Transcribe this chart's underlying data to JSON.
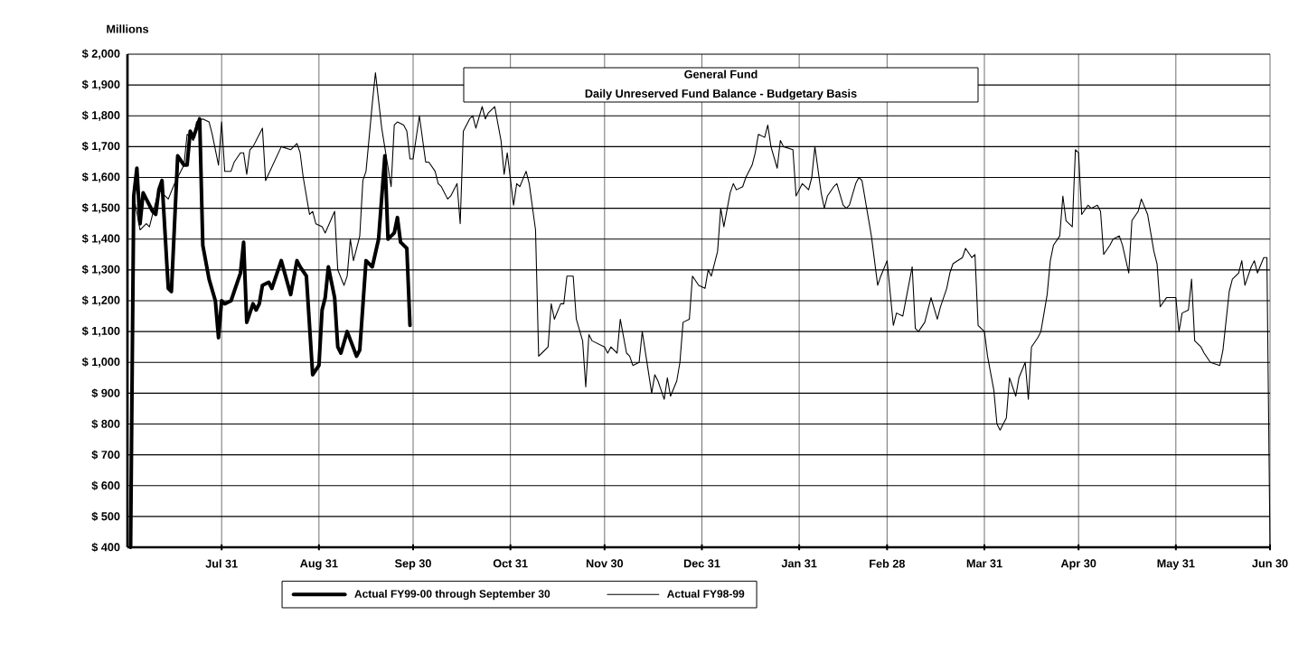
{
  "chart_data": {
    "type": "line",
    "title": "General Fund",
    "subtitle": "Daily Unreserved Fund Balance - Budgetary Basis",
    "ylabel": "Millions",
    "xlim": [
      "1998-07-01",
      "1999-06-30"
    ],
    "xticks": [
      {
        "value": "1998-07-31",
        "label": "Jul 31"
      },
      {
        "value": "1998-08-31",
        "label": "Aug 31"
      },
      {
        "value": "1998-09-30",
        "label": "Sep 30"
      },
      {
        "value": "1998-10-31",
        "label": "Oct 31"
      },
      {
        "value": "1998-11-30",
        "label": "Nov 30"
      },
      {
        "value": "1998-12-31",
        "label": "Dec 31"
      },
      {
        "value": "1999-01-31",
        "label": "Jan 31"
      },
      {
        "value": "1999-02-28",
        "label": "Feb 28"
      },
      {
        "value": "1999-03-31",
        "label": "Mar 31"
      },
      {
        "value": "1999-04-30",
        "label": "Apr 30"
      },
      {
        "value": "1999-05-31",
        "label": "May 31"
      },
      {
        "value": "1999-06-30",
        "label": "Jun 30"
      }
    ],
    "ylim": [
      400,
      2000
    ],
    "yticks": [
      {
        "value": 400,
        "label": "$ 400"
      },
      {
        "value": 500,
        "label": "$ 500"
      },
      {
        "value": 600,
        "label": "$ 600"
      },
      {
        "value": 700,
        "label": "$ 700"
      },
      {
        "value": 800,
        "label": "$ 800"
      },
      {
        "value": 900,
        "label": "$ 900"
      },
      {
        "value": 1000,
        "label": "$ 1,000"
      },
      {
        "value": 1100,
        "label": "$ 1,100"
      },
      {
        "value": 1200,
        "label": "$ 1,200"
      },
      {
        "value": 1300,
        "label": "$ 1,300"
      },
      {
        "value": 1400,
        "label": "$ 1,400"
      },
      {
        "value": 1500,
        "label": "$ 1,500"
      },
      {
        "value": 1600,
        "label": "$ 1,600"
      },
      {
        "value": 1700,
        "label": "$ 1,700"
      },
      {
        "value": 1800,
        "label": "$ 1,800"
      },
      {
        "value": 1900,
        "label": "$ 1,900"
      },
      {
        "value": 2000,
        "label": "$ 2,000"
      }
    ],
    "grid": true,
    "legend": "bottom",
    "series": [
      {
        "name": "Actual FY99-00 through September 30",
        "color": "#000000",
        "x": [
          "1998-07-02",
          "1998-07-03",
          "1998-07-04",
          "1998-07-05",
          "1998-07-06",
          "1998-07-09",
          "1998-07-10",
          "1998-07-11",
          "1998-07-12",
          "1998-07-14",
          "1998-07-15",
          "1998-07-17",
          "1998-07-19",
          "1998-07-20",
          "1998-07-21",
          "1998-07-22",
          "1998-07-24",
          "1998-07-25",
          "1998-07-27",
          "1998-07-29",
          "1998-07-30",
          "1998-07-31",
          "1998-08-01",
          "1998-08-03",
          "1998-08-04",
          "1998-08-06",
          "1998-08-07",
          "1998-08-08",
          "1998-08-10",
          "1998-08-11",
          "1998-08-12",
          "1998-08-13",
          "1998-08-15",
          "1998-08-16",
          "1998-08-19",
          "1998-08-22",
          "1998-08-24",
          "1998-08-25",
          "1998-08-27",
          "1998-08-28",
          "1998-08-29",
          "1998-08-31",
          "1998-09-01",
          "1998-09-02",
          "1998-09-03",
          "1998-09-05",
          "1998-09-06",
          "1998-09-07",
          "1998-09-09",
          "1998-09-12",
          "1998-09-13",
          "1998-09-15",
          "1998-09-17",
          "1998-09-19",
          "1998-09-21",
          "1998-09-22",
          "1998-09-24",
          "1998-09-25",
          "1998-09-26",
          "1998-09-28",
          "1998-09-29"
        ],
        "values": [
          400,
          1540,
          1630,
          1450,
          1550,
          1490,
          1480,
          1560,
          1590,
          1240,
          1230,
          1670,
          1640,
          1640,
          1750,
          1730,
          1790,
          1380,
          1270,
          1200,
          1080,
          1200,
          1190,
          1200,
          1230,
          1290,
          1390,
          1130,
          1190,
          1170,
          1190,
          1250,
          1260,
          1240,
          1330,
          1220,
          1330,
          1310,
          1280,
          1120,
          960,
          990,
          1170,
          1210,
          1310,
          1210,
          1050,
          1030,
          1100,
          1020,
          1040,
          1330,
          1310,
          1400,
          1670,
          1400,
          1420,
          1470,
          1390,
          1370,
          1120
        ]
      },
      {
        "name": "Actual FY98-99",
        "color": "#000000",
        "x": [
          "1998-07-03",
          "1998-07-05",
          "1998-07-07",
          "1998-07-08",
          "1998-07-09",
          "1998-07-11",
          "1998-07-14",
          "1998-07-16",
          "1998-07-19",
          "1998-07-20",
          "1998-07-22",
          "1998-07-23",
          "1998-07-25",
          "1998-07-27",
          "1998-07-28",
          "1998-07-30",
          "1998-07-31",
          "1998-08-01",
          "1998-08-03",
          "1998-08-04",
          "1998-08-06",
          "1998-08-07",
          "1998-08-08",
          "1998-08-09",
          "1998-08-10",
          "1998-08-13",
          "1998-08-14",
          "1998-08-19",
          "1998-08-22",
          "1998-08-24",
          "1998-08-25",
          "1998-08-26",
          "1998-08-28",
          "1998-08-29",
          "1998-08-30",
          "1998-09-01",
          "1998-09-02",
          "1998-09-05",
          "1998-09-06",
          "1998-09-08",
          "1998-09-09",
          "1998-09-10",
          "1998-09-11",
          "1998-09-13",
          "1998-09-14",
          "1998-09-15",
          "1998-09-17",
          "1998-09-18",
          "1998-09-20",
          "1998-09-23",
          "1998-09-24",
          "1998-09-25",
          "1998-09-27",
          "1998-09-28",
          "1998-09-29",
          "1998-09-30",
          "1998-10-02",
          "1998-10-04",
          "1998-10-05",
          "1998-10-07",
          "1998-10-08",
          "1998-10-09",
          "1998-10-11",
          "1998-10-12",
          "1998-10-14",
          "1998-10-15",
          "1998-10-16",
          "1998-10-18",
          "1998-10-19",
          "1998-10-20",
          "1998-10-22",
          "1998-10-23",
          "1998-10-24",
          "1998-10-26",
          "1998-10-28",
          "1998-10-29",
          "1998-10-30",
          "1998-11-01",
          "1998-11-02",
          "1998-11-03",
          "1998-11-05",
          "1998-11-06",
          "1998-11-08",
          "1998-11-09",
          "1998-11-10",
          "1998-11-12",
          "1998-11-13",
          "1998-11-14",
          "1998-11-16",
          "1998-11-17",
          "1998-11-18",
          "1998-11-20",
          "1998-11-21",
          "1998-11-23",
          "1998-11-24",
          "1998-11-25",
          "1998-11-26",
          "1998-11-30",
          "1998-12-01",
          "1998-12-02",
          "1998-12-04",
          "1998-12-05",
          "1998-12-07",
          "1998-12-08",
          "1998-12-09",
          "1998-12-11",
          "1998-12-12",
          "1998-12-15",
          "1998-12-16",
          "1998-12-17",
          "1998-12-19",
          "1998-12-20",
          "1998-12-21",
          "1998-12-23",
          "1998-12-24",
          "1998-12-25",
          "1998-12-27",
          "1998-12-28",
          "1998-12-30",
          "1999-01-01",
          "1999-01-02",
          "1999-01-03",
          "1999-01-05",
          "1999-01-06",
          "1999-01-07",
          "1999-01-09",
          "1999-01-10",
          "1999-01-11",
          "1999-01-13",
          "1999-01-14",
          "1999-01-16",
          "1999-01-17",
          "1999-01-18",
          "1999-01-20",
          "1999-01-21",
          "1999-01-22",
          "1999-01-24",
          "1999-01-25",
          "1999-01-26",
          "1999-01-29",
          "1999-01-30",
          "1999-02-01",
          "1999-02-03",
          "1999-02-04",
          "1999-02-05",
          "1999-02-07",
          "1999-02-08",
          "1999-02-09",
          "1999-02-11",
          "1999-02-12",
          "1999-02-14",
          "1999-02-15",
          "1999-02-16",
          "1999-02-18",
          "1999-02-19",
          "1999-02-20",
          "1999-02-22",
          "1999-02-23",
          "1999-02-25",
          "1999-02-26",
          "1999-02-28",
          "1999-03-02",
          "1999-03-03",
          "1999-03-05",
          "1999-03-08",
          "1999-03-09",
          "1999-03-10",
          "1999-03-12",
          "1999-03-14",
          "1999-03-16",
          "1999-03-17",
          "1999-03-19",
          "1999-03-20",
          "1999-03-21",
          "1999-03-24",
          "1999-03-25",
          "1999-03-27",
          "1999-03-28",
          "1999-03-29",
          "1999-03-31",
          "1999-04-01",
          "1999-04-03",
          "1999-04-04",
          "1999-04-05",
          "1999-04-07",
          "1999-04-08",
          "1999-04-10",
          "1999-04-11",
          "1999-04-13",
          "1999-04-14",
          "1999-04-15",
          "1999-04-17",
          "1999-04-18",
          "1999-04-20",
          "1999-04-21",
          "1999-04-22",
          "1999-04-24",
          "1999-04-25",
          "1999-04-26",
          "1999-04-28",
          "1999-04-29",
          "1999-04-30",
          "1999-05-01",
          "1999-05-03",
          "1999-05-04",
          "1999-05-06",
          "1999-05-07",
          "1999-05-08",
          "1999-05-10",
          "1999-05-11",
          "1999-05-13",
          "1999-05-14",
          "1999-05-16",
          "1999-05-17",
          "1999-05-19",
          "1999-05-20",
          "1999-05-22",
          "1999-05-24",
          "1999-05-25",
          "1999-05-26",
          "1999-05-28",
          "1999-05-31",
          "1999-06-01",
          "1999-06-02",
          "1999-06-04",
          "1999-06-05",
          "1999-06-06",
          "1999-06-08",
          "1999-06-09",
          "1999-06-11",
          "1999-06-14",
          "1999-06-15",
          "1999-06-17",
          "1999-06-18",
          "1999-06-20",
          "1999-06-21",
          "1999-06-22",
          "1999-06-24",
          "1999-06-25",
          "1999-06-26",
          "1999-06-28",
          "1999-06-29",
          "1999-06-30"
        ],
        "values": [
          1540,
          1430,
          1450,
          1440,
          1480,
          1560,
          1530,
          1580,
          1640,
          1740,
          1720,
          1780,
          1790,
          1780,
          1740,
          1640,
          1780,
          1620,
          1620,
          1650,
          1680,
          1680,
          1610,
          1690,
          1700,
          1760,
          1590,
          1700,
          1690,
          1710,
          1680,
          1600,
          1480,
          1490,
          1450,
          1440,
          1420,
          1490,
          1300,
          1250,
          1280,
          1400,
          1330,
          1410,
          1590,
          1620,
          1840,
          1940,
          1760,
          1570,
          1770,
          1780,
          1770,
          1750,
          1660,
          1660,
          1800,
          1650,
          1650,
          1620,
          1580,
          1570,
          1530,
          1540,
          1580,
          1450,
          1750,
          1790,
          1800,
          1760,
          1830,
          1790,
          1810,
          1830,
          1720,
          1610,
          1680,
          1510,
          1580,
          1570,
          1620,
          1580,
          1430,
          1020,
          1030,
          1050,
          1190,
          1140,
          1190,
          1190,
          1280,
          1280,
          1140,
          1070,
          920,
          1090,
          1070,
          1050,
          1030,
          1050,
          1030,
          1140,
          1030,
          1020,
          990,
          1000,
          1100,
          900,
          960,
          940,
          880,
          950,
          890,
          940,
          1000,
          1130,
          1140,
          1280,
          1250,
          1240,
          1300,
          1280,
          1360,
          1500,
          1440,
          1550,
          1580,
          1560,
          1570,
          1600,
          1640,
          1680,
          1740,
          1730,
          1770,
          1700,
          1630,
          1720,
          1700,
          1690,
          1540,
          1580,
          1560,
          1600,
          1700,
          1550,
          1500,
          1540,
          1570,
          1580,
          1510,
          1500,
          1510,
          1580,
          1600,
          1590,
          1470,
          1410,
          1250,
          1280,
          1330,
          1120,
          1160,
          1150,
          1310,
          1110,
          1100,
          1130,
          1210,
          1140,
          1180,
          1240,
          1290,
          1320,
          1340,
          1370,
          1340,
          1350,
          1120,
          1100,
          1020,
          910,
          800,
          780,
          820,
          950,
          890,
          950,
          1000,
          880,
          1050,
          1080,
          1100,
          1220,
          1330,
          1380,
          1410,
          1540,
          1460,
          1440,
          1690,
          1680,
          1480,
          1510,
          1500,
          1510,
          1490,
          1350,
          1380,
          1400,
          1410,
          1380,
          1290,
          1460,
          1490,
          1530,
          1480,
          1360,
          1320,
          1180,
          1210,
          1210,
          1100,
          1160,
          1170,
          1270,
          1070,
          1050,
          1030,
          1000,
          990,
          1040,
          1230,
          1270,
          1290,
          1330,
          1250,
          1310,
          1330,
          1290,
          1340,
          1340,
          400
        ]
      }
    ]
  }
}
